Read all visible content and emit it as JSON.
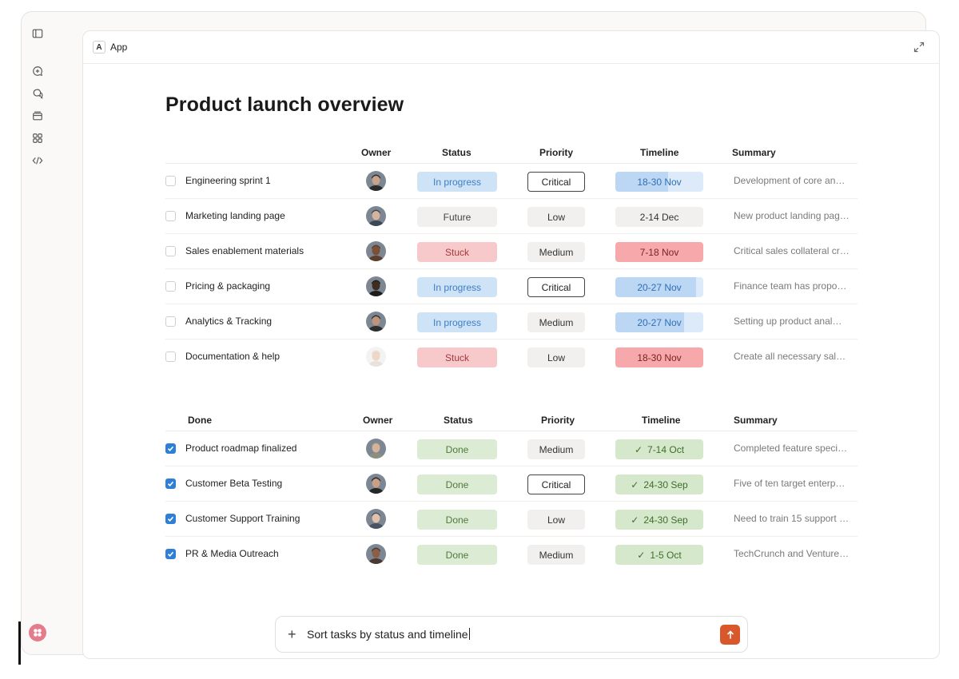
{
  "app": {
    "badge": "A",
    "label": "App"
  },
  "page": {
    "title": "Product launch overview"
  },
  "active_table": {
    "headers": {
      "task": "",
      "owner": "Owner",
      "status": "Status",
      "priority": "Priority",
      "timeline": "Timeline",
      "summary": "Summary"
    },
    "rows": [
      {
        "task": "Engineering sprint 1",
        "status": "In progress",
        "status_kind": "progress",
        "priority": "Critical",
        "priority_kind": "outline",
        "timeline": "18-30 Nov",
        "timeline_kind": "blue",
        "summary": "Development of core ana…"
      },
      {
        "task": "Marketing landing page",
        "status": "Future",
        "status_kind": "future",
        "priority": "Low",
        "priority_kind": "plain",
        "timeline": "2-14 Dec",
        "timeline_kind": "gray",
        "summary": "New product landing pag…"
      },
      {
        "task": "Sales enablement materials",
        "status": "Stuck",
        "status_kind": "stuck",
        "priority": "Medium",
        "priority_kind": "plain",
        "timeline": "7-18 Nov",
        "timeline_kind": "red",
        "summary": "Critical sales collateral cr…"
      },
      {
        "task": "Pricing & packaging",
        "status": "In progress",
        "status_kind": "progress",
        "priority": "Critical",
        "priority_kind": "outline",
        "timeline": "20-27 Nov",
        "timeline_kind": "blue2",
        "summary": "Finance team has propo…"
      },
      {
        "task": "Analytics & Tracking",
        "status": "In progress",
        "status_kind": "progress",
        "priority": "Medium",
        "priority_kind": "plain",
        "timeline": "20-27 Nov",
        "timeline_kind": "blue3",
        "summary": "Setting up product anal…"
      },
      {
        "task": "Documentation & help",
        "status": "Stuck",
        "status_kind": "stuck",
        "priority": "Low",
        "priority_kind": "plain",
        "timeline": "18-30 Nov",
        "timeline_kind": "red",
        "summary": "Create all necessary sale…"
      }
    ]
  },
  "done_table": {
    "headers": {
      "task": "Done",
      "owner": "Owner",
      "status": "Status",
      "priority": "Priority",
      "timeline": "Timeline",
      "summary": "Summary"
    },
    "rows": [
      {
        "task": "Product roadmap finalized",
        "status": "Done",
        "priority": "Medium",
        "priority_kind": "plain",
        "timeline": "7-14 Oct",
        "summary": "Completed feature speci…"
      },
      {
        "task": "Customer Beta Testing",
        "status": "Done",
        "priority": "Critical",
        "priority_kind": "outline",
        "timeline": "24-30 Sep",
        "summary": "Five of ten target enterp…"
      },
      {
        "task": "Customer Support Training",
        "status": "Done",
        "priority": "Low",
        "priority_kind": "plain",
        "timeline": "24-30 Sep",
        "summary": "Need to train 15 support r…"
      },
      {
        "task": "PR & Media Outreach",
        "status": "Done",
        "priority": "Medium",
        "priority_kind": "plain",
        "timeline": "1-5 Oct",
        "summary": "TechCrunch and Venture…"
      }
    ]
  },
  "composer": {
    "text": "Sort tasks by status and timeline"
  },
  "colors": {
    "accent_send": "#d9582b",
    "checkbox_on": "#2f7fd6"
  }
}
